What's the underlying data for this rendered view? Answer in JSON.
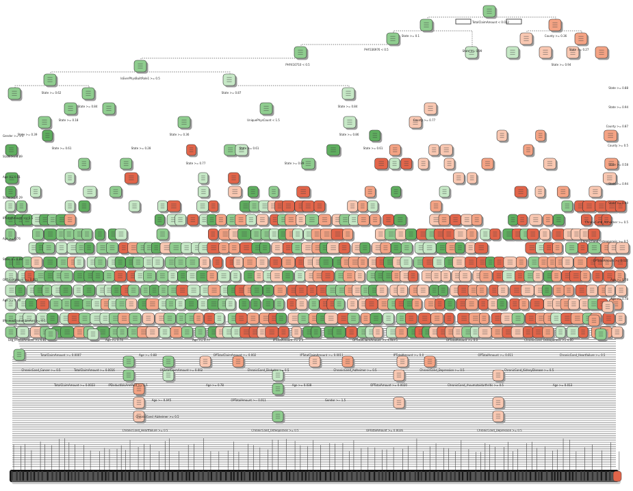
{
  "diagram": {
    "type": "decision-tree",
    "colors": {
      "green_dark": "#5fae5f",
      "green_mid": "#8fcd8f",
      "green_light": "#c6e8c6",
      "salmon_light": "#f9c8b2",
      "salmon_mid": "#f4a384",
      "salmon_dark": "#e2654a",
      "leaf_bar": "#111111"
    },
    "root_split": "TotalClaimAmount < 0.032",
    "level1": [
      {
        "id": "l1a",
        "label": "State >= 0.1"
      },
      {
        "id": "l1b",
        "label": "County >= 0.36"
      }
    ],
    "level2": [
      {
        "id": "l2a",
        "label": "PHY336976 < 0.5"
      },
      {
        "id": "l2b",
        "label": "State >= 0.99"
      },
      {
        "id": "l2c",
        "label": "State >= 0.27"
      }
    ],
    "level3": [
      {
        "id": "l3a",
        "label": "PHY410710 < 0.5"
      },
      {
        "id": "l3b",
        "label": "State >= 0.94"
      }
    ],
    "level4": [
      {
        "id": "l4a",
        "label": "IsEverPhysBuiltRole1 >= 0.5"
      }
    ],
    "level5": [
      {
        "id": "l5a",
        "label": "State >= 0.62"
      },
      {
        "id": "l5b",
        "label": "State >= 0.87"
      }
    ],
    "level6": [
      {
        "id": "l6a",
        "label": "State >= 0.84"
      },
      {
        "id": "l6b",
        "label": "State >= 0.84"
      }
    ],
    "level7": [
      {
        "id": "l7a",
        "label": "State >= 0.18"
      },
      {
        "id": "l7b",
        "label": "UniquePhysCount < 1.5"
      },
      {
        "id": "l7c",
        "label": "County >= 0.77"
      }
    ],
    "level8": [
      {
        "id": "l8a",
        "label": "State >= 0.39"
      },
      {
        "id": "l8b",
        "label": "State >= 0.36"
      },
      {
        "id": "l8c",
        "label": "State >= 0.86"
      }
    ],
    "level9": [
      {
        "id": "l9a",
        "label": "State >= 0.61"
      },
      {
        "id": "l9b",
        "label": "State >= 0.28"
      },
      {
        "id": "l9c",
        "label": "State >= 0.61"
      },
      {
        "id": "l9d",
        "label": "State >= 0.61"
      }
    ],
    "level10": [
      {
        "id": "l10a",
        "label": "State >= 0.77"
      },
      {
        "id": "l10b",
        "label": "State >= 0.89"
      }
    ],
    "lower_labels": [
      "Log_IPTotalAmount >= 6.81",
      "Age >= 0.74",
      "Age >= 0.77",
      "IPTotalAmount >= 2.5",
      "OPTotalClaimAmount >= 4.9e+5",
      "OPTotalAmount >= 0.0",
      "ChronicCond_Osteoporasis >= 0.00",
      "TotalClaimAmount >= 0.0007",
      "Age >= 0.88",
      "OPTotalClaimAmount >= 0.002",
      "IPTotalClaimAmount >= 0.0011",
      "IPTotalAmount >= 0.0",
      "OPTotalAmount >= 0.011",
      "ChronicCond_Heartfailure >= 0.5",
      "TotalClaimAmount >= 0.0016",
      "OPTotalClaimAmount >= 0.002",
      "ChronicCond_Diabetes >= 0.5",
      "ChronicCond_Alzheimer >= 0.5",
      "ChronicCond_Depression >= 0.5",
      "ChronicCond_KidneyDisease >= 0.5",
      "ChronicCond_Cancer >= 0.5",
      "IPDeductibleAmtPaid >= 0.5",
      "Age >= 0.78",
      "Age >= 0.038",
      "OPTotalAmount >= 0.0020",
      "ChronicCond_rheumatoidarthritis >= 0.5",
      "Age >= 0.013",
      "TotalClaimAmount >= 0.0023",
      "Age >= 0.045",
      "OPTotalAmount >= 0.011",
      "Gender >= 1.5"
    ],
    "bottom_labels": [
      "ChronicCond_Heartfailure >= 0.5",
      "ChronicCond_Osteoporasis >= 0.5",
      "OPTotalAmount >= 0.0026",
      "ChronicCond_Depression >= 0.5",
      "ChronicCond_Alzheimer >= 0.5"
    ],
    "side_labels": [
      "Gender >= 1.5",
      "State >= 0.89",
      "Age >= 0.51",
      "State >= 0.29",
      "IPTotalAmount >= 2.5",
      "Age >= 0.76",
      "State >= 0.88",
      "OPTotalAmount >= 0.011",
      "Age >= 0.38",
      "IPAnnualDeductibleAmt >= 0.5"
    ],
    "right_labels": [
      "State >= 0.88",
      "State >= 0.94",
      "County >= 0.87",
      "County >= 0.5",
      "State >= 0.58",
      "State >= 0.94",
      "State >= 0.99",
      "ChronicCond_Alzheimer >= 0.5",
      "ChronicCond_Osteoporasis >= 0.5",
      "OPTotalAmount >= 0.027",
      "Age >= 0.78",
      "Age >= 0.78"
    ]
  }
}
